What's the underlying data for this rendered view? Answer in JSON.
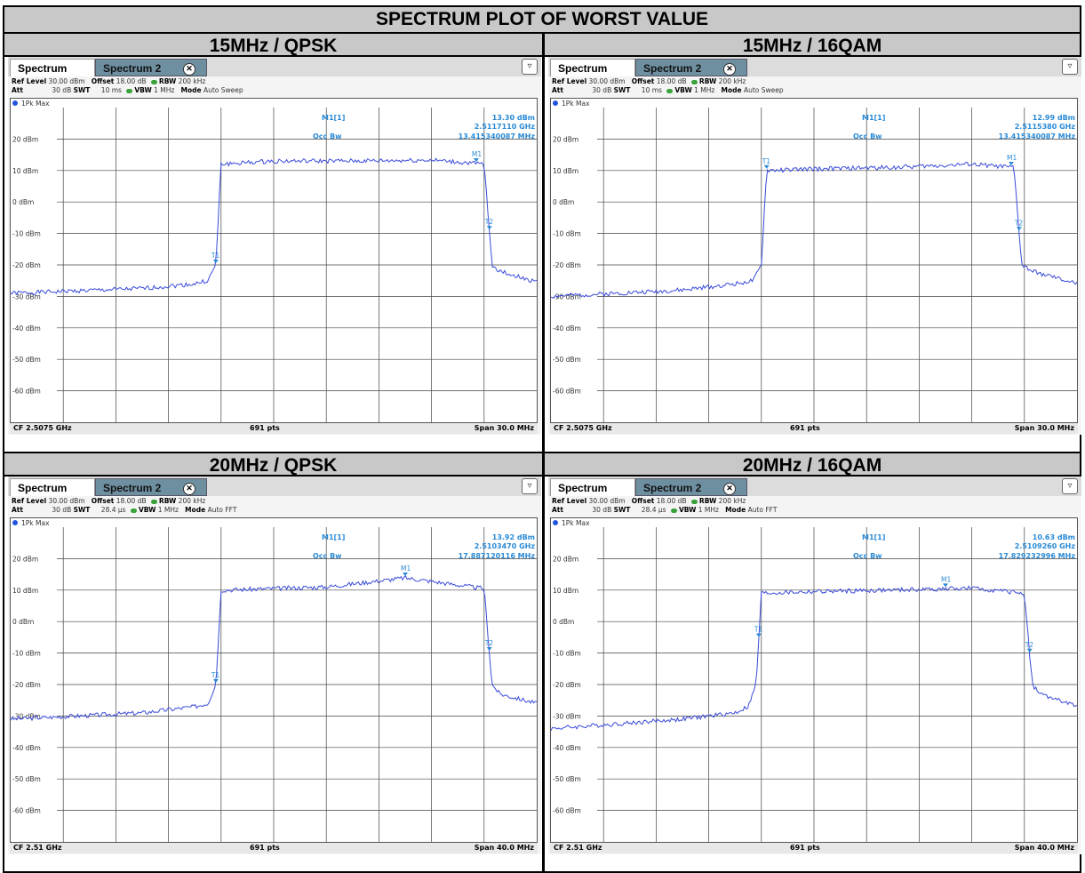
{
  "page": {
    "title": "SPECTRUM PLOT OF WORST VALUE"
  },
  "colors": {
    "trace": "#3a4bd9",
    "marker_text": "#2a8ad6",
    "grid": "#333333",
    "header_bg": "#c8c8c8"
  },
  "chart_data": [
    {
      "type": "line",
      "panel_title": "15MHz / QPSK",
      "tabs": [
        "Spectrum",
        "Spectrum 2"
      ],
      "settings": {
        "ref_level_label": "Ref Level",
        "ref_level": "30.00 dBm",
        "offset_label": "Offset",
        "offset": "18.00 dB",
        "rbw_label": "RBW",
        "rbw": "200 kHz",
        "att_label": "Att",
        "att": "30 dB",
        "swt_label": "SWT",
        "swt": "10 ms",
        "vbw_label": "VBW",
        "vbw": "1 MHz",
        "mode_label": "Mode",
        "mode": "Auto Sweep"
      },
      "trace_label": "1Pk Max",
      "marker": {
        "name": "M1[1]",
        "level": "13.30 dBm",
        "freq": "2.5117110 GHz",
        "occ_bw_label": "Occ Bw",
        "occ_bw": "13.415340087 MHz",
        "x": 0.77
      },
      "y_ticks": [
        "20 dBm",
        "10 dBm",
        "0 dBm",
        "-10 dBm",
        "-20 dBm",
        "-30 dBm",
        "-40 dBm",
        "-50 dBm",
        "-60 dBm"
      ],
      "ylim": [
        -70,
        30
      ],
      "xlim": [
        -1,
        1
      ],
      "cf": "CF 2.5075 GHz",
      "pts": "691 pts",
      "span": "Span 30.0 MHz",
      "series": [
        {
          "x": [
            -1,
            -0.5,
            -0.3,
            -0.25,
            -0.22,
            -0.2,
            0,
            0.3,
            0.6,
            0.8,
            0.83,
            0.86,
            1
          ],
          "y": [
            -29,
            -27.5,
            -26,
            -25,
            -20,
            12,
            13,
            13,
            13.3,
            12,
            -20,
            -22,
            -25.5
          ]
        }
      ],
      "t1_x": -0.22,
      "t2_x": 0.82
    },
    {
      "type": "line",
      "panel_title": "15MHz / 16QAM",
      "tabs": [
        "Spectrum",
        "Spectrum 2"
      ],
      "settings": {
        "ref_level_label": "Ref Level",
        "ref_level": "30.00 dBm",
        "offset_label": "Offset",
        "offset": "18.00 dB",
        "rbw_label": "RBW",
        "rbw": "200 kHz",
        "att_label": "Att",
        "att": "30 dB",
        "swt_label": "SWT",
        "swt": "10 ms",
        "vbw_label": "VBW",
        "vbw": "1 MHz",
        "mode_label": "Mode",
        "mode": "Auto Sweep"
      },
      "trace_label": "1Pk Max",
      "marker": {
        "name": "M1[1]",
        "level": "12.99 dBm",
        "freq": "2.5115380 GHz",
        "occ_bw_label": "Occ Bw",
        "occ_bw": "13.415340087 MHz",
        "x": 0.75
      },
      "y_ticks": [
        "20 dBm",
        "10 dBm",
        "0 dBm",
        "-10 dBm",
        "-20 dBm",
        "-30 dBm",
        "-40 dBm",
        "-50 dBm",
        "-60 dBm"
      ],
      "ylim": [
        -70,
        30
      ],
      "xlim": [
        -1,
        1
      ],
      "cf": "CF 2.5075 GHz",
      "pts": "691 pts",
      "span": "Span 30.0 MHz",
      "series": [
        {
          "x": [
            -1,
            -0.5,
            -0.3,
            -0.23,
            -0.2,
            -0.18,
            0,
            0.3,
            0.6,
            0.76,
            0.79,
            0.83,
            1
          ],
          "y": [
            -30,
            -28,
            -26,
            -25,
            -20,
            10,
            10.5,
            11,
            12,
            11,
            -20,
            -22,
            -26
          ]
        }
      ],
      "t1_x": -0.18,
      "t2_x": 0.78
    },
    {
      "type": "line",
      "panel_title": "20MHz / QPSK",
      "tabs": [
        "Spectrum",
        "Spectrum 2"
      ],
      "settings": {
        "ref_level_label": "Ref Level",
        "ref_level": "30.00 dBm",
        "offset_label": "Offset",
        "offset": "18.00 dB",
        "rbw_label": "RBW",
        "rbw": "200 kHz",
        "att_label": "Att",
        "att": "30 dB",
        "swt_label": "SWT",
        "swt": "28.4 µs",
        "vbw_label": "VBW",
        "vbw": "1 MHz",
        "mode_label": "Mode",
        "mode": "Auto FFT"
      },
      "trace_label": "1Pk Max",
      "marker": {
        "name": "M1[1]",
        "level": "13.92 dBm",
        "freq": "2.5103470 GHz",
        "occ_bw_label": "Occ Bw",
        "occ_bw": "17.887120116 MHz",
        "x": 0.5
      },
      "y_ticks": [
        "20 dBm",
        "10 dBm",
        "0 dBm",
        "-10 dBm",
        "-20 dBm",
        "-30 dBm",
        "-40 dBm",
        "-50 dBm",
        "-60 dBm"
      ],
      "ylim": [
        -70,
        30
      ],
      "xlim": [
        -1,
        1
      ],
      "cf": "CF 2.51 GHz",
      "pts": "691 pts",
      "span": "Span 40.0 MHz",
      "series": [
        {
          "x": [
            -1,
            -0.5,
            -0.3,
            -0.25,
            -0.22,
            -0.2,
            0,
            0.2,
            0.5,
            0.8,
            0.83,
            0.86,
            1
          ],
          "y": [
            -31,
            -29,
            -27,
            -26,
            -20,
            10,
            10.5,
            11,
            13.9,
            10.5,
            -20,
            -23,
            -26
          ]
        }
      ],
      "t1_x": -0.22,
      "t2_x": 0.82
    },
    {
      "type": "line",
      "panel_title": "20MHz / 16QAM",
      "tabs": [
        "Spectrum",
        "Spectrum 2"
      ],
      "settings": {
        "ref_level_label": "Ref Level",
        "ref_level": "30.00 dBm",
        "offset_label": "Offset",
        "offset": "18.00 dB",
        "rbw_label": "RBW",
        "rbw": "200 kHz",
        "att_label": "Att",
        "att": "30 dB",
        "swt_label": "SWT",
        "swt": "28.4 µs",
        "vbw_label": "VBW",
        "vbw": "1 MHz",
        "mode_label": "Mode",
        "mode": "Auto FFT"
      },
      "trace_label": "1Pk Max",
      "marker": {
        "name": "M1[1]",
        "level": "10.63 dBm",
        "freq": "2.5109260 GHz",
        "occ_bw_label": "Occ Bw",
        "occ_bw": "17.829232996 MHz",
        "x": 0.5
      },
      "y_ticks": [
        "20 dBm",
        "10 dBm",
        "0 dBm",
        "-10 dBm",
        "-20 dBm",
        "-30 dBm",
        "-40 dBm",
        "-50 dBm",
        "-60 dBm"
      ],
      "ylim": [
        -70,
        30
      ],
      "xlim": [
        -1,
        1
      ],
      "cf": "CF 2.51 GHz",
      "pts": "691 pts",
      "span": "Span 40.0 MHz",
      "series": [
        {
          "x": [
            -1,
            -0.5,
            -0.3,
            -0.25,
            -0.22,
            -0.2,
            0,
            0.3,
            0.6,
            0.8,
            0.83,
            0.86,
            1
          ],
          "y": [
            -34,
            -31,
            -29,
            -27,
            -20,
            9,
            9.5,
            10,
            10.6,
            9,
            -20,
            -23,
            -27
          ]
        }
      ],
      "t1_x": -0.21,
      "t2_x": 0.82
    }
  ]
}
